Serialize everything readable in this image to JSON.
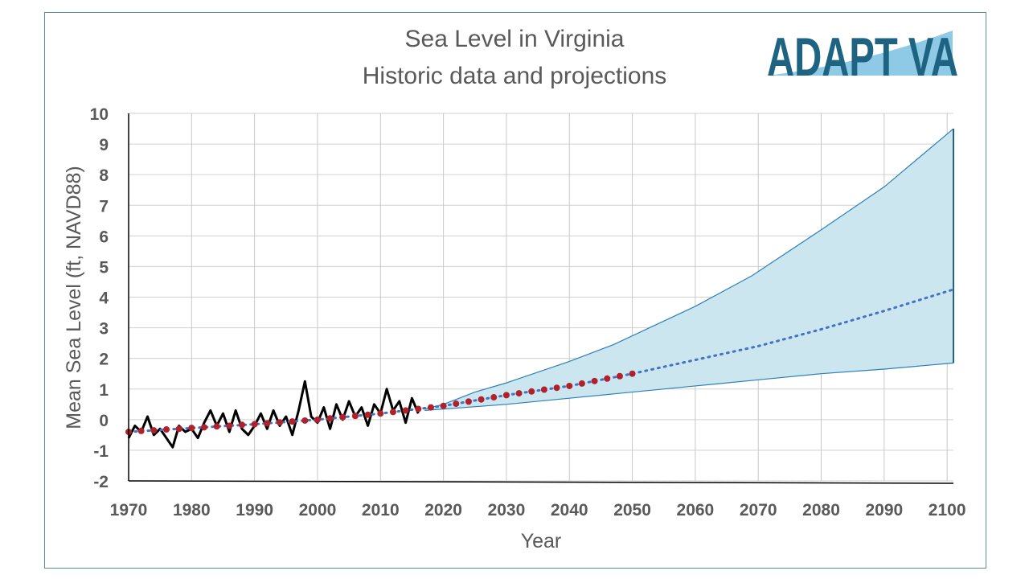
{
  "chart_data": {
    "type": "line",
    "title": "Sea Level in Virginia",
    "subtitle": "Historic data and projections",
    "xlabel": "Year",
    "ylabel": "Mean Sea Level (ft, NAVD88)",
    "xlim": [
      1970,
      2101
    ],
    "ylim": [
      -2,
      10
    ],
    "xticks": [
      1970,
      1980,
      1990,
      2000,
      2010,
      2020,
      2030,
      2040,
      2050,
      2060,
      2070,
      2080,
      2090,
      2100
    ],
    "yticks": [
      -2,
      -1,
      0,
      1,
      2,
      3,
      4,
      5,
      6,
      7,
      8,
      9,
      10
    ],
    "grid": true,
    "colors": {
      "historic": "#000000",
      "band_fill": "#cce6ef",
      "band_line": "#2e7fb8",
      "median": "#4472c4",
      "markers": "#b0212b",
      "text": "#595959"
    },
    "historic": {
      "x": [
        1970,
        1971,
        1972,
        1973,
        1974,
        1975,
        1976,
        1977,
        1978,
        1979,
        1980,
        1981,
        1982,
        1983,
        1984,
        1985,
        1986,
        1987,
        1988,
        1989,
        1990,
        1991,
        1992,
        1993,
        1994,
        1995,
        1996,
        1997,
        1998,
        1999,
        2000,
        2001,
        2002,
        2003,
        2004,
        2005,
        2006,
        2007,
        2008,
        2009,
        2010,
        2011,
        2012,
        2013,
        2014,
        2015,
        2016
      ],
      "y": [
        -0.6,
        -0.2,
        -0.4,
        0.1,
        -0.5,
        -0.3,
        -0.6,
        -0.9,
        -0.2,
        -0.4,
        -0.3,
        -0.6,
        -0.1,
        0.3,
        -0.2,
        0.2,
        -0.4,
        0.3,
        -0.3,
        -0.5,
        -0.2,
        0.2,
        -0.3,
        0.3,
        -0.2,
        0.1,
        -0.5,
        0.3,
        1.25,
        0.1,
        -0.1,
        0.4,
        -0.3,
        0.5,
        0.0,
        0.6,
        0.1,
        0.4,
        -0.2,
        0.5,
        0.2,
        1.0,
        0.3,
        0.6,
        -0.1,
        0.7,
        0.2
      ]
    },
    "projection_upper": {
      "x": [
        2017,
        2020,
        2025,
        2030,
        2040,
        2047,
        2060,
        2069,
        2080,
        2090,
        2101
      ],
      "y": [
        0.35,
        0.5,
        0.9,
        1.2,
        1.9,
        2.45,
        3.7,
        4.7,
        6.2,
        7.6,
        9.5
      ]
    },
    "projection_lower": {
      "x": [
        2017,
        2030,
        2040,
        2050,
        2060,
        2070,
        2080,
        2090,
        2101
      ],
      "y": [
        0.3,
        0.5,
        0.7,
        0.9,
        1.1,
        1.3,
        1.5,
        1.65,
        1.85
      ]
    },
    "projection_median": {
      "x": [
        1970,
        1990,
        2000,
        2010,
        2020,
        2030,
        2040,
        2050,
        2060,
        2070,
        2080,
        2090,
        2101
      ],
      "y": [
        -0.4,
        -0.15,
        0.0,
        0.2,
        0.45,
        0.8,
        1.1,
        1.5,
        1.95,
        2.4,
        2.95,
        3.55,
        4.25
      ]
    },
    "markers": {
      "x": [
        1970,
        1972,
        1974,
        1976,
        1978,
        1980,
        1982,
        1984,
        1986,
        1988,
        1990,
        1992,
        1994,
        1996,
        1998,
        2000,
        2002,
        2004,
        2006,
        2008,
        2010,
        2012,
        2014,
        2016,
        2018,
        2020,
        2022,
        2024,
        2026,
        2028,
        2030,
        2032,
        2034,
        2036,
        2038,
        2040,
        2042,
        2044,
        2046,
        2048,
        2050
      ],
      "y": [
        -0.4,
        -0.37,
        -0.35,
        -0.32,
        -0.3,
        -0.27,
        -0.25,
        -0.22,
        -0.2,
        -0.17,
        -0.15,
        -0.12,
        -0.09,
        -0.06,
        -0.03,
        0.0,
        0.04,
        0.08,
        0.12,
        0.16,
        0.2,
        0.25,
        0.3,
        0.35,
        0.4,
        0.45,
        0.52,
        0.59,
        0.66,
        0.73,
        0.8,
        0.86,
        0.92,
        0.98,
        1.04,
        1.1,
        1.18,
        1.26,
        1.34,
        1.42,
        1.5
      ]
    }
  },
  "logo": {
    "text": "ADAPT VA"
  }
}
